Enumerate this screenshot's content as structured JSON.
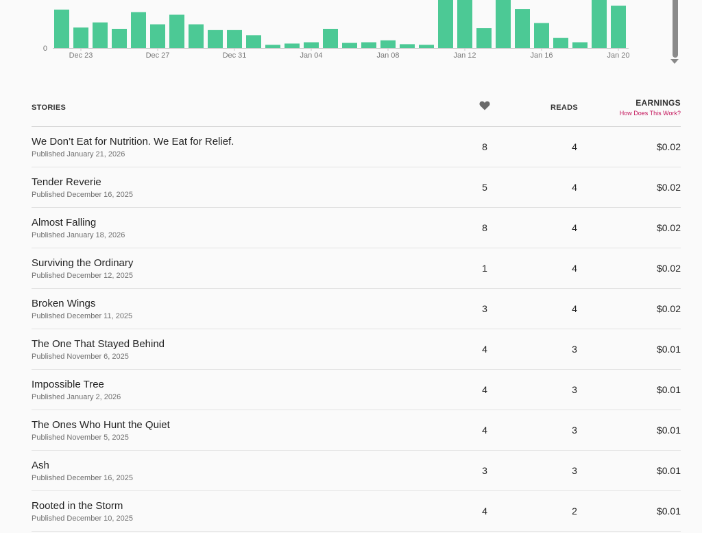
{
  "chart_data": {
    "type": "bar",
    "categories": [
      "Dec 22",
      "Dec 23",
      "Dec 24",
      "Dec 25",
      "Dec 26",
      "Dec 27",
      "Dec 28",
      "Dec 29",
      "Dec 30",
      "Dec 31",
      "Jan 01",
      "Jan 02",
      "Jan 03",
      "Jan 04",
      "Jan 05",
      "Jan 06",
      "Jan 07",
      "Jan 08",
      "Jan 09",
      "Jan 10",
      "Jan 11",
      "Jan 12",
      "Jan 13",
      "Jan 14",
      "Jan 15",
      "Jan 16",
      "Jan 17",
      "Jan 18",
      "Jan 19",
      "Jan 20"
    ],
    "values": [
      60,
      32,
      40,
      30,
      56,
      37,
      52,
      37,
      28,
      28,
      20,
      5,
      7,
      9,
      30,
      8,
      9,
      12,
      6,
      5,
      75,
      75,
      31,
      75,
      61,
      39,
      16,
      9,
      75,
      66
    ],
    "x_tick_labels": [
      "Dec 23",
      "Dec 27",
      "Dec 31",
      "Jan 04",
      "Jan 08",
      "Jan 12",
      "Jan 16",
      "Jan 20"
    ],
    "y_tick_labels": [
      "0"
    ],
    "ylim": [
      0,
      75
    ],
    "bar_color": "#4cc995",
    "grid": false,
    "title": "",
    "xlabel": "",
    "ylabel": ""
  },
  "table": {
    "col_stories": "STORIES",
    "col_likes_icon": "heart-icon",
    "col_reads": "READS",
    "col_earnings": "EARNINGS",
    "how_link": "How Does This Work?"
  },
  "stories": [
    {
      "title": "We Don’t Eat for Nutrition. We Eat for Relief.",
      "published": "Published January 21, 2026",
      "likes": "8",
      "reads": "4",
      "earnings": "$0.02"
    },
    {
      "title": "Tender Reverie",
      "published": "Published December 16, 2025",
      "likes": "5",
      "reads": "4",
      "earnings": "$0.02"
    },
    {
      "title": "Almost Falling",
      "published": "Published January 18, 2026",
      "likes": "8",
      "reads": "4",
      "earnings": "$0.02"
    },
    {
      "title": "Surviving the Ordinary",
      "published": "Published December 12, 2025",
      "likes": "1",
      "reads": "4",
      "earnings": "$0.02"
    },
    {
      "title": "Broken Wings",
      "published": "Published December 11, 2025",
      "likes": "3",
      "reads": "4",
      "earnings": "$0.02"
    },
    {
      "title": "The One That Stayed Behind",
      "published": "Published November 6, 2025",
      "likes": "4",
      "reads": "3",
      "earnings": "$0.01"
    },
    {
      "title": "Impossible Tree",
      "published": "Published January 2, 2026",
      "likes": "4",
      "reads": "3",
      "earnings": "$0.01"
    },
    {
      "title": "The Ones Who Hunt the Quiet",
      "published": "Published November 5, 2025",
      "likes": "4",
      "reads": "3",
      "earnings": "$0.01"
    },
    {
      "title": "Ash",
      "published": "Published December 16, 2025",
      "likes": "3",
      "reads": "3",
      "earnings": "$0.01"
    },
    {
      "title": "Rooted in the Storm",
      "published": "Published December 10, 2025",
      "likes": "4",
      "reads": "2",
      "earnings": "$0.01"
    }
  ],
  "colors": {
    "accent_link": "#c4145a",
    "bar": "#4cc995"
  }
}
